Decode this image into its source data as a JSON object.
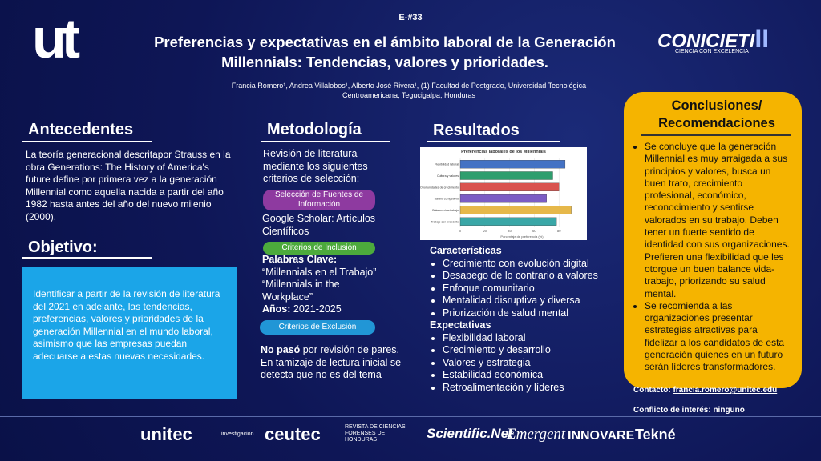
{
  "header": {
    "code": "E-#33",
    "title": "Preferencias y expectativas en el ámbito laboral de la Generación Millennials: Tendencias, valores y prioridades.",
    "authors": "Francia Romero¹, Andrea Villalobos¹, Alberto José Rivera¹, (1) Facultad de Postgrado, Universidad Tecnológica Centroamericana, Tegucigalpa, Honduras",
    "logo": "ut",
    "event": "CONICIETI",
    "event_numeral": "II",
    "event_tagline": "CIENCIA CON EXCELENCIA"
  },
  "antecedentes": {
    "heading": "Antecedentes",
    "text": "La teoría generacional descritapor Strauss en la obra Generations: The History of America's future define por primera vez a la generación Millennial como aquella nacida a partir del año 1982 hasta antes del año del nuevo milenio (2000)."
  },
  "objetivo": {
    "heading": "Objetivo:",
    "text": "Identificar a partir de la revisión de literatura del 2021 en adelante, las tendencias, preferencias, valores y prioridades de la generación Millennial en el mundo laboral, asimismo que las empresas puedan adecuarse a estas nuevas necesidades."
  },
  "metodologia": {
    "heading": "Metodología",
    "intro": "Revisión de literatura mediante los siguientes criterios de selección:",
    "pill_sources": "Selección de Fuentes de Información",
    "sources": "Google Scholar: Artículos Científicos",
    "pill_inclusion": "Criterios de Inclusión",
    "keywords_label": "Palabras Clave:",
    "keywords": "“Millennials en el Trabajo” “Millennials in the Workplace”",
    "years_label": "Años:",
    "years": "2021-2025",
    "pill_exclusion": "Criterios de Exclusión",
    "exclusion_bold": "No pasó",
    "exclusion_text": "por revisión de pares. En tamizaje de lectura inicial se detecta que no es del tema"
  },
  "resultados": {
    "heading": "Resultados",
    "caracteristicas_heading": "Características",
    "caracteristicas": [
      "Crecimiento con evolución digital",
      "Desapego de lo contrario a valores",
      "Enfoque comunitario",
      "Mentalidad disruptiva y diversa",
      "Priorización de salud mental"
    ],
    "expectativas_heading": "Expectativas",
    "expectativas": [
      "Flexibilidad laboral",
      "Crecimiento y desarrollo",
      "Valores y estrategia",
      "Estabilidad económica",
      "Retroalimentación y líderes"
    ]
  },
  "chart_data": {
    "type": "barh",
    "title": "Preferencias laborales de los Millennials",
    "categories": [
      "Flexibilidad laboral",
      "Cultura y valores",
      "Oportunidades de crecimiento",
      "Salario competitivo",
      "Balance vida-trabajo",
      "Trabajo con propósito"
    ],
    "values": [
      85,
      75,
      80,
      70,
      90,
      78
    ],
    "colors": [
      "#4472c4",
      "#2e9e6e",
      "#d9534f",
      "#7b5cc4",
      "#e6b84a",
      "#3aa7a7"
    ],
    "xlabel": "Porcentaje de preferencia (%)",
    "xlim": [
      0,
      100
    ],
    "xticks": [
      0,
      20,
      40,
      60,
      80
    ],
    "grid": true
  },
  "conclusiones": {
    "heading": "Conclusiones/ Recomendaciones",
    "items": [
      "Se concluye que la generación Millennial es muy arraigada a sus principios y valores, busca un buen trato, crecimiento profesional, económico, reconocimiento y sentirse valorados en su trabajo. Deben tener un fuerte sentido de identidad con sus organizaciones. Prefieren una flexibilidad que les otorgue un buen balance vida-trabajo, priorizando su salud mental.",
      "Se recomienda a las organizaciones presentar estrategias atractivas para fidelizar a los candidatos de esta generación quienes en un futuro serán líderes transformadores."
    ]
  },
  "contact": {
    "label": "Contacto:",
    "email": "francia.romero@unitec.edu",
    "conflict": "Conflicto de interés: ninguno"
  },
  "footer": {
    "unitec": "unitec",
    "investigacion": "investigación",
    "ceutec": "ceutec",
    "revista": "REVISTA DE CIENCIAS FORENSES DE HONDURAS",
    "scientific": "Scientific.Net",
    "emergent": "Emergent",
    "innovare": "INNOVARE",
    "tekne": "Tekné"
  }
}
